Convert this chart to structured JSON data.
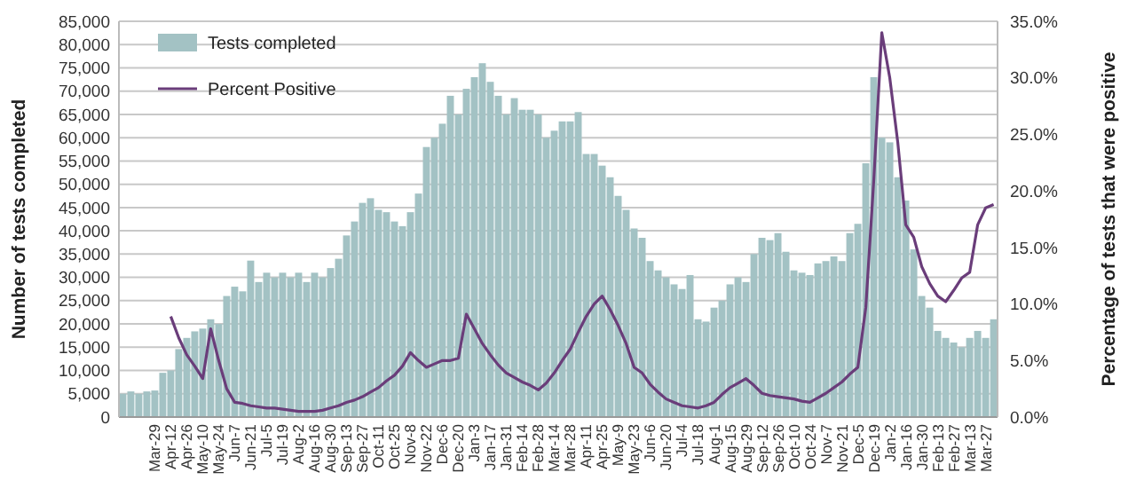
{
  "chart_data": {
    "type": "bar",
    "ylabel": "Number of tests completed",
    "y2label": "Percentage of tests that were positive",
    "categories": [
      null,
      null,
      null,
      null,
      "Mar-29",
      null,
      "Apr-12",
      null,
      "Apr-26",
      null,
      "May-10",
      null,
      "May-24",
      null,
      "Jun-7",
      null,
      "Jun-21",
      null,
      "Jul-5",
      null,
      "Jul-19",
      null,
      "Aug-2",
      null,
      "Aug-16",
      null,
      "Aug-30",
      null,
      "Sep-13",
      null,
      "Sep-27",
      null,
      "Oct-11",
      null,
      "Oct-25",
      null,
      "Nov-8",
      null,
      "Nov-22",
      null,
      "Dec-6",
      null,
      "Dec-20",
      null,
      "Jan-3",
      null,
      "Jan-17",
      null,
      "Jan-31",
      null,
      "Feb-14",
      null,
      "Feb-28",
      null,
      "Mar-14",
      null,
      "Mar-28",
      null,
      "Apr-11",
      null,
      "Apr-25",
      null,
      "May-9",
      null,
      "May-23",
      null,
      "Jun-6",
      null,
      "Jun-20",
      null,
      "Jul-4",
      null,
      "Jul-18",
      null,
      "Aug-1",
      null,
      "Aug-15",
      null,
      "Aug-29",
      null,
      "Sep-12",
      null,
      "Sep-26",
      null,
      "Oct-10",
      null,
      "Oct-24",
      null,
      "Nov-7",
      null,
      "Nov-21",
      null,
      "Dec-5",
      null,
      "Dec-19",
      null,
      "Jan-2",
      null,
      "Jan-16",
      null,
      "Jan-30",
      null,
      "Feb-13",
      null,
      "Feb-27",
      null,
      "Mar-13",
      null,
      "Mar-27",
      null
    ],
    "series": [
      {
        "name": "Tests completed",
        "axis": "y",
        "color": "#a3c2c4",
        "values": [
          5000,
          5500,
          5000,
          5500,
          5700,
          9500,
          10000,
          14600,
          17000,
          18400,
          19000,
          21000,
          20000,
          26000,
          28000,
          27000,
          33600,
          29000,
          31000,
          30000,
          31000,
          30000,
          31000,
          29000,
          31000,
          30000,
          32000,
          34000,
          39000,
          42000,
          46000,
          47000,
          44500,
          44000,
          42000,
          41000,
          44000,
          48000,
          58000,
          60000,
          63000,
          69000,
          65000,
          70500,
          73000,
          76000,
          72000,
          69000,
          65000,
          68500,
          66000,
          66000,
          65000,
          60000,
          61500,
          63500,
          63500,
          65500,
          56500,
          56500,
          54000,
          51500,
          47500,
          44500,
          40500,
          38500,
          33500,
          31500,
          30000,
          28500,
          27500,
          30500,
          21000,
          20500,
          23500,
          25000,
          28500,
          30000,
          29000,
          35000,
          38500,
          38000,
          39500,
          35500,
          31500,
          31000,
          30500,
          33000,
          33500,
          34500,
          33500,
          39500,
          41500,
          54500,
          73000,
          60000,
          59000,
          51500,
          46500,
          36000,
          26000,
          23500,
          18500,
          17000,
          16000,
          15000,
          17000,
          18500,
          17000,
          21000
        ]
      },
      {
        "name": "Percent Positive",
        "type": "line",
        "axis": "y2",
        "color": "#6a3d7a",
        "values": [
          null,
          null,
          null,
          null,
          null,
          null,
          8.9,
          7.0,
          5.5,
          4.5,
          3.4,
          7.8,
          5.0,
          2.5,
          1.3,
          1.2,
          1.0,
          0.9,
          0.8,
          0.8,
          0.7,
          0.6,
          0.5,
          0.5,
          0.5,
          0.6,
          0.8,
          1.0,
          1.3,
          1.5,
          1.8,
          2.2,
          2.6,
          3.2,
          3.7,
          4.5,
          5.7,
          5.0,
          4.4,
          4.7,
          5.0,
          5.0,
          5.2,
          9.1,
          7.8,
          6.5,
          5.5,
          4.6,
          3.9,
          3.5,
          3.1,
          2.8,
          2.4,
          3.0,
          3.9,
          5.0,
          6.0,
          7.5,
          8.9,
          10.0,
          10.7,
          9.5,
          8.1,
          6.5,
          4.4,
          3.9,
          2.9,
          2.2,
          1.6,
          1.3,
          1.0,
          0.9,
          0.8,
          1.0,
          1.3,
          2.0,
          2.6,
          3.0,
          3.4,
          2.8,
          2.1,
          1.9,
          1.8,
          1.7,
          1.6,
          1.4,
          1.3,
          1.7,
          2.1,
          2.6,
          3.1,
          3.8,
          4.4,
          9.7,
          21.0,
          34.0,
          30.0,
          24.3,
          17.0,
          15.9,
          13.3,
          11.8,
          10.7,
          10.2,
          11.2,
          12.3,
          12.8,
          17.0,
          18.5,
          18.8
        ]
      }
    ],
    "ylim": [
      0,
      85000
    ],
    "yticks": [
      {
        "value": 0,
        "label": "0"
      },
      {
        "value": 5000,
        "label": "5,000"
      },
      {
        "value": 10000,
        "label": "10,000"
      },
      {
        "value": 15000,
        "label": "15,000"
      },
      {
        "value": 20000,
        "label": "20,000"
      },
      {
        "value": 25000,
        "label": "25,000"
      },
      {
        "value": 30000,
        "label": "30,000"
      },
      {
        "value": 35000,
        "label": "35,000"
      },
      {
        "value": 40000,
        "label": "40,000"
      },
      {
        "value": 45000,
        "label": "45,000"
      },
      {
        "value": 50000,
        "label": "50,000"
      },
      {
        "value": 55000,
        "label": "55,000"
      },
      {
        "value": 60000,
        "label": "60,000"
      },
      {
        "value": 65000,
        "label": "65,000"
      },
      {
        "value": 70000,
        "label": "70,000"
      },
      {
        "value": 75000,
        "label": "75,000"
      },
      {
        "value": 80000,
        "label": "80,000"
      },
      {
        "value": 85000,
        "label": "85,000"
      }
    ],
    "y2lim": [
      0,
      35
    ],
    "y2ticks": [
      {
        "value": 0,
        "label": "0.0%"
      },
      {
        "value": 5,
        "label": "5.0%"
      },
      {
        "value": 10,
        "label": "10.0%"
      },
      {
        "value": 15,
        "label": "15.0%"
      },
      {
        "value": 20,
        "label": "20.0%"
      },
      {
        "value": 25,
        "label": "25.0%"
      },
      {
        "value": 30,
        "label": "30.0%"
      },
      {
        "value": 35,
        "label": "35.0%"
      }
    ],
    "grid": "y",
    "legend": "top left",
    "marker": "none",
    "line_style": "solid"
  }
}
